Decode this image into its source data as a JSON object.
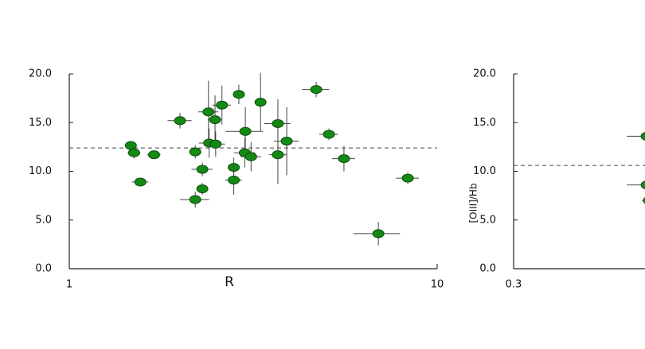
{
  "chart_data": [
    {
      "type": "scatter",
      "xlabel": "R",
      "xscale": "log",
      "xlim": [
        1,
        10
      ],
      "xticks": [
        1,
        10
      ],
      "ylim": [
        0,
        20
      ],
      "yticks": [
        {
          "value": 0,
          "label": "0.0"
        },
        {
          "value": 5,
          "label": "5.0"
        },
        {
          "value": 10,
          "label": "10.0"
        },
        {
          "value": 15,
          "label": "15.0"
        },
        {
          "value": 20,
          "label": "20.0"
        }
      ],
      "hline": 12.4,
      "color": "#138a13",
      "x": [
        1.47,
        1.5,
        1.7,
        1.56,
        2.0,
        2.2,
        2.3,
        2.3,
        2.2,
        2.39,
        2.49,
        2.6,
        2.4,
        2.5,
        2.89,
        2.8,
        2.8,
        3.01,
        3.0,
        3.12,
        3.31,
        3.69,
        3.69,
        3.9,
        4.69,
        5.08,
        5.58,
        6.92,
        8.32
      ],
      "y": [
        12.65,
        11.9,
        11.7,
        8.9,
        15.2,
        12.0,
        10.2,
        8.2,
        7.1,
        16.1,
        15.3,
        16.8,
        12.9,
        12.8,
        17.9,
        10.4,
        9.1,
        14.1,
        11.9,
        11.5,
        17.1,
        14.9,
        11.7,
        13.1,
        18.4,
        13.8,
        11.3,
        3.6,
        9.3
      ],
      "xerr": [
        0.05,
        0.06,
        0.07,
        0.08,
        0.15,
        0.08,
        0.15,
        0.08,
        0.2,
        0.15,
        0.1,
        0.15,
        0.15,
        0.15,
        0.1,
        0.1,
        0.15,
        0.35,
        0.2,
        0.2,
        0.1,
        0.3,
        0.2,
        0.3,
        0.4,
        0.3,
        0.4,
        1.0,
        0.6
      ],
      "yerr": [
        0.2,
        0.6,
        0.4,
        0.3,
        0.8,
        0.7,
        0.7,
        0.6,
        0.8,
        3.2,
        2.5,
        2.0,
        1.5,
        1.3,
        1.0,
        1.0,
        1.5,
        2.5,
        1.5,
        1.5,
        3.0,
        2.5,
        3.0,
        3.5,
        0.8,
        0.6,
        1.3,
        1.2,
        0.6
      ]
    },
    {
      "type": "scatter",
      "ylabel": "[OIII]/Hb",
      "xscale": "log",
      "xlim": [
        0.3,
        3
      ],
      "xticks": [
        0.3
      ],
      "ylim": [
        0,
        20
      ],
      "yticks": [
        {
          "value": 0,
          "label": "0.0"
        },
        {
          "value": 5,
          "label": "5.0"
        },
        {
          "value": 10,
          "label": "10.0"
        },
        {
          "value": 15,
          "label": "15.0"
        },
        {
          "value": 20,
          "label": "20.0"
        }
      ],
      "hline": 10.6,
      "color": "#138a13",
      "x": [
        0.69,
        0.69,
        0.7
      ],
      "y": [
        13.6,
        8.6,
        7.0
      ],
      "xerr": [
        0.08,
        0.08,
        0.03
      ],
      "yerr": [
        0.3,
        0.3,
        0.3
      ]
    }
  ]
}
